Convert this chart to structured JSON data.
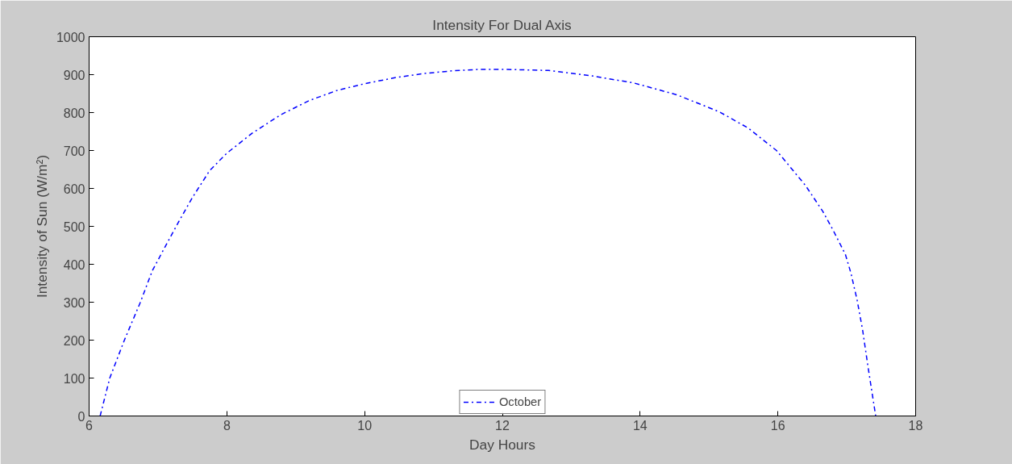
{
  "chart_data": {
    "type": "line",
    "title": "Intensity For Dual Axis",
    "xlabel": "Day Hours",
    "ylabel": "Intensity of Sun (W/m²)",
    "xlim": [
      6,
      18
    ],
    "xticks": [
      6,
      8,
      10,
      12,
      14,
      16,
      18
    ],
    "ylim": [
      0,
      1000
    ],
    "yticks": [
      0,
      100,
      200,
      300,
      400,
      500,
      600,
      700,
      800,
      900,
      1000
    ],
    "grid": false,
    "legend": "bottom",
    "line_style": "dashdot",
    "marker": "none",
    "series": [
      {
        "name": "October",
        "color": "#0000ff",
        "x": [
          6.16,
          6.3,
          6.51,
          6.74,
          6.92,
          7.13,
          7.3,
          7.5,
          7.75,
          8.0,
          8.37,
          8.79,
          9.2,
          9.61,
          10.0,
          10.44,
          10.86,
          11.27,
          11.68,
          12.0,
          12.67,
          13.29,
          13.91,
          14.53,
          15.15,
          15.57,
          15.98,
          16.4,
          16.65,
          16.81,
          16.98,
          17.06,
          17.15,
          17.23,
          17.31,
          17.42
        ],
        "values": [
          0,
          100,
          199,
          298,
          384,
          455,
          512,
          576,
          647,
          693,
          746,
          795,
          832,
          859,
          876,
          892,
          903,
          910,
          914,
          914,
          911,
          897,
          878,
          847,
          802,
          759,
          700,
          608,
          540,
          487,
          426,
          377,
          306,
          227,
          128,
          0
        ]
      }
    ]
  }
}
